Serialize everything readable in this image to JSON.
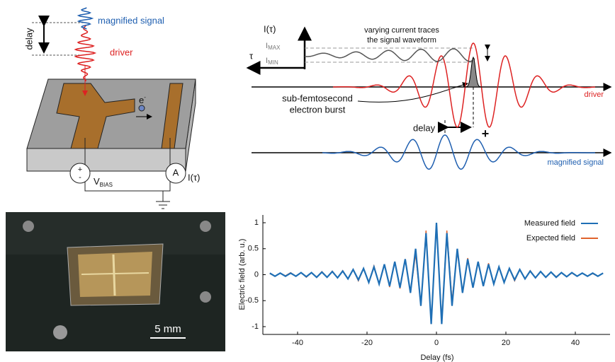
{
  "schematic": {
    "signal_label": "magnified signal",
    "delay_label": "delay",
    "driver_label": "driver",
    "electron_label": "e",
    "electron_sup": "-",
    "bias_label": "V",
    "bias_sub": "BIAS",
    "bias_plus": "+",
    "bias_minus": "-",
    "ammeter_label": "A",
    "current_label": "I(τ)"
  },
  "waveform": {
    "axis_label": "I(τ)",
    "note": [
      "varying current traces",
      "the signal waveform"
    ],
    "imax": "I",
    "imax_sub": "MAX",
    "imin": "I",
    "imin_sub": "MIN",
    "tau": "τ",
    "burst": [
      "sub-femtosecond",
      "electron burst"
    ],
    "driver_label": "driver",
    "delay_label": "delay",
    "plus": "+",
    "signal_label": "magnified signal"
  },
  "photo": {
    "scale_label": "5 mm"
  },
  "chart_data": {
    "type": "line",
    "xlabel": "Delay (fs)",
    "ylabel": "Electric field (arb. u.)",
    "x": [
      -48,
      -46.5,
      -45,
      -43.5,
      -42,
      -40.5,
      -39,
      -37.5,
      -36,
      -34.5,
      -33,
      -31.5,
      -30,
      -28.5,
      -27,
      -25.5,
      -24,
      -22.5,
      -21,
      -19.5,
      -18,
      -16.5,
      -15,
      -13.5,
      -12,
      -10.5,
      -9,
      -7.5,
      -6,
      -4.5,
      -3,
      -1.5,
      0,
      1.5,
      3,
      4.5,
      6,
      7.5,
      9,
      10.5,
      12,
      13.5,
      15,
      16.5,
      18,
      19.5,
      21,
      22.5,
      24,
      25.5,
      27,
      28.5,
      30,
      31.5,
      33,
      34.5,
      36,
      37.5,
      39,
      40.5,
      42,
      43.5,
      45,
      46.5,
      48
    ],
    "series": [
      {
        "name": "Measured field",
        "color": "#1f6fb5",
        "values": [
          0.03,
          -0.03,
          0.03,
          -0.03,
          0.03,
          -0.03,
          0.04,
          -0.04,
          0.04,
          -0.05,
          0.05,
          -0.05,
          0.06,
          -0.06,
          0.07,
          -0.08,
          0.1,
          -0.1,
          0.12,
          -0.15,
          0.15,
          -0.18,
          0.2,
          -0.22,
          0.25,
          -0.25,
          0.3,
          -0.35,
          0.5,
          -0.6,
          0.8,
          -0.95,
          1.0,
          -0.95,
          0.8,
          -0.6,
          0.5,
          -0.35,
          0.3,
          -0.25,
          0.25,
          -0.22,
          0.2,
          -0.18,
          0.15,
          -0.15,
          0.12,
          -0.1,
          0.1,
          -0.08,
          0.07,
          -0.06,
          0.06,
          -0.05,
          0.05,
          -0.05,
          0.04,
          -0.04,
          0.04,
          -0.03,
          0.03,
          -0.03,
          0.03,
          -0.03,
          0.03
        ]
      },
      {
        "name": "Expected field",
        "color": "#e0622c",
        "values": [
          0.02,
          -0.03,
          0.03,
          -0.02,
          0.04,
          -0.03,
          0.04,
          -0.05,
          0.04,
          -0.05,
          0.06,
          -0.05,
          0.07,
          -0.06,
          0.08,
          -0.08,
          0.1,
          -0.12,
          0.12,
          -0.15,
          0.17,
          -0.18,
          0.2,
          -0.24,
          0.25,
          -0.27,
          0.3,
          -0.35,
          0.4,
          -0.6,
          0.85,
          -0.95,
          1.0,
          -0.9,
          0.85,
          -0.5,
          0.45,
          -0.35,
          0.32,
          -0.25,
          0.25,
          -0.22,
          0.22,
          -0.18,
          0.15,
          -0.15,
          0.12,
          -0.12,
          0.1,
          -0.08,
          0.08,
          -0.06,
          0.06,
          -0.05,
          0.05,
          -0.04,
          0.04,
          -0.04,
          0.03,
          -0.03,
          0.03,
          -0.03,
          0.02,
          -0.03,
          0.03
        ]
      }
    ],
    "xlim": [
      -50,
      50
    ],
    "ylim": [
      -1.15,
      1.15
    ],
    "xticks": [
      -40,
      -20,
      0,
      20,
      40
    ],
    "yticks": [
      -1,
      -0.5,
      0,
      0.5,
      1
    ],
    "legend": "upper right"
  }
}
